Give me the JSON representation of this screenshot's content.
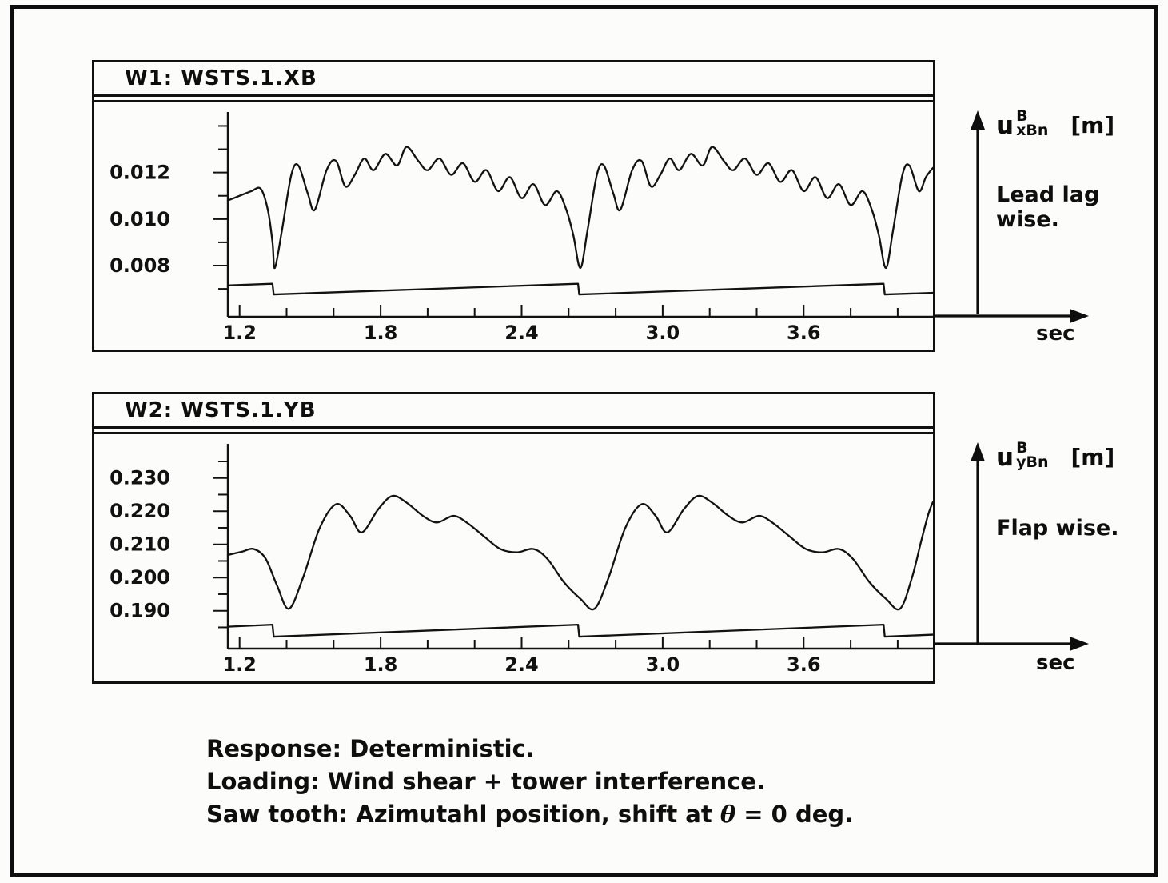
{
  "colors": {
    "ink": "#111111",
    "background": "#fcfcfa"
  },
  "panels": [
    {
      "title": "W1: WSTS.1.XB",
      "axis_label": {
        "base": "u",
        "sup": "B",
        "sub": "xBn",
        "unit": "[m]"
      },
      "direction_caption": "Lead lag wise.",
      "x_unit": "sec"
    },
    {
      "title": "W2: WSTS.1.YB",
      "axis_label": {
        "base": "u",
        "sup": "B",
        "sub": "yBn",
        "unit": "[m]"
      },
      "direction_caption": "Flap wise.",
      "x_unit": "sec"
    }
  ],
  "notes": {
    "line1": "Response: Deterministic.",
    "line2": "Loading: Wind shear + tower interference.",
    "line3_pre": "Saw tooth: Azimutahl position, shift at ",
    "line3_sym": "θ",
    "line3_post": " = 0 deg."
  },
  "chart_data": [
    {
      "type": "line",
      "title": "W1: WSTS.1.XB",
      "xlabel": "sec",
      "ylabel": "u_xBn^B [m] (Lead lag wise)",
      "grid": false,
      "legend": false,
      "xlim": [
        1.15,
        4.15
      ],
      "ylim": [
        0.0058,
        0.0146
      ],
      "x_ticks": [
        {
          "v": 1.2,
          "label": "1.2"
        },
        {
          "v": 1.4
        },
        {
          "v": 1.6
        },
        {
          "v": 1.8,
          "label": "1.8"
        },
        {
          "v": 2.0
        },
        {
          "v": 2.2
        },
        {
          "v": 2.4,
          "label": "2.4"
        },
        {
          "v": 2.6
        },
        {
          "v": 2.8
        },
        {
          "v": 3.0,
          "label": "3.0"
        },
        {
          "v": 3.2
        },
        {
          "v": 3.4
        },
        {
          "v": 3.6,
          "label": "3.6"
        },
        {
          "v": 3.8
        },
        {
          "v": 4.0
        }
      ],
      "y_ticks": [
        {
          "v": 0.007
        },
        {
          "v": 0.008,
          "label": "0.008"
        },
        {
          "v": 0.009
        },
        {
          "v": 0.01,
          "label": "0.010"
        },
        {
          "v": 0.011
        },
        {
          "v": 0.012,
          "label": "0.012"
        },
        {
          "v": 0.013
        },
        {
          "v": 0.014
        }
      ],
      "series": [
        {
          "name": "lead-lag-response",
          "smooth": true,
          "points": [
            [
              1.15,
              0.0108
            ],
            [
              1.2,
              0.011
            ],
            [
              1.25,
              0.0112
            ],
            [
              1.29,
              0.0113
            ],
            [
              1.32,
              0.0104
            ],
            [
              1.34,
              0.009
            ],
            [
              1.35,
              0.0079
            ],
            [
              1.38,
              0.0095
            ],
            [
              1.42,
              0.0119
            ],
            [
              1.45,
              0.0123
            ],
            [
              1.49,
              0.0111
            ],
            [
              1.52,
              0.0104
            ],
            [
              1.57,
              0.0121
            ],
            [
              1.61,
              0.0125
            ],
            [
              1.65,
              0.0114
            ],
            [
              1.69,
              0.0119
            ],
            [
              1.73,
              0.0126
            ],
            [
              1.77,
              0.0121
            ],
            [
              1.82,
              0.0128
            ],
            [
              1.87,
              0.0123
            ],
            [
              1.91,
              0.0131
            ],
            [
              1.96,
              0.0125
            ],
            [
              2.0,
              0.0121
            ],
            [
              2.05,
              0.0126
            ],
            [
              2.1,
              0.0119
            ],
            [
              2.15,
              0.0124
            ],
            [
              2.2,
              0.0116
            ],
            [
              2.25,
              0.0121
            ],
            [
              2.3,
              0.0112
            ],
            [
              2.35,
              0.0118
            ],
            [
              2.4,
              0.0109
            ],
            [
              2.45,
              0.0115
            ],
            [
              2.5,
              0.0106
            ],
            [
              2.55,
              0.0112
            ],
            [
              2.59,
              0.0104
            ],
            [
              2.62,
              0.0093
            ],
            [
              2.65,
              0.0079
            ],
            [
              2.68,
              0.0095
            ],
            [
              2.72,
              0.0119
            ],
            [
              2.75,
              0.0123
            ],
            [
              2.79,
              0.0111
            ],
            [
              2.82,
              0.0104
            ],
            [
              2.87,
              0.0121
            ],
            [
              2.91,
              0.0125
            ],
            [
              2.95,
              0.0114
            ],
            [
              2.99,
              0.0119
            ],
            [
              3.03,
              0.0126
            ],
            [
              3.07,
              0.0121
            ],
            [
              3.12,
              0.0128
            ],
            [
              3.17,
              0.0123
            ],
            [
              3.21,
              0.0131
            ],
            [
              3.26,
              0.0125
            ],
            [
              3.3,
              0.0121
            ],
            [
              3.35,
              0.0126
            ],
            [
              3.4,
              0.0119
            ],
            [
              3.45,
              0.0124
            ],
            [
              3.5,
              0.0116
            ],
            [
              3.55,
              0.0121
            ],
            [
              3.6,
              0.0112
            ],
            [
              3.65,
              0.0118
            ],
            [
              3.7,
              0.0109
            ],
            [
              3.75,
              0.0115
            ],
            [
              3.8,
              0.0106
            ],
            [
              3.85,
              0.0112
            ],
            [
              3.89,
              0.0104
            ],
            [
              3.92,
              0.0093
            ],
            [
              3.95,
              0.0079
            ],
            [
              3.98,
              0.0095
            ],
            [
              4.02,
              0.0119
            ],
            [
              4.05,
              0.0123
            ],
            [
              4.09,
              0.0112
            ],
            [
              4.12,
              0.0118
            ],
            [
              4.15,
              0.0122
            ]
          ]
        },
        {
          "name": "azimuth-sawtooth",
          "smooth": false,
          "points": [
            [
              1.15,
              0.00715
            ],
            [
              1.34,
              0.00722
            ],
            [
              1.345,
              0.00676
            ],
            [
              2.64,
              0.00722
            ],
            [
              2.645,
              0.00676
            ],
            [
              3.94,
              0.00722
            ],
            [
              3.945,
              0.00676
            ],
            [
              4.15,
              0.00683
            ]
          ]
        }
      ]
    },
    {
      "type": "line",
      "title": "W2: WSTS.1.YB",
      "xlabel": "sec",
      "ylabel": "u_yBn^B [m] (Flap wise)",
      "grid": false,
      "legend": false,
      "xlim": [
        1.15,
        4.15
      ],
      "ylim": [
        0.1786,
        0.2403
      ],
      "x_ticks": [
        {
          "v": 1.2,
          "label": "1.2"
        },
        {
          "v": 1.4
        },
        {
          "v": 1.6
        },
        {
          "v": 1.8,
          "label": "1.8"
        },
        {
          "v": 2.0
        },
        {
          "v": 2.2
        },
        {
          "v": 2.4,
          "label": "2.4"
        },
        {
          "v": 2.6
        },
        {
          "v": 2.8
        },
        {
          "v": 3.0,
          "label": "3.0"
        },
        {
          "v": 3.2
        },
        {
          "v": 3.4
        },
        {
          "v": 3.6,
          "label": "3.6"
        },
        {
          "v": 3.8
        },
        {
          "v": 4.0
        }
      ],
      "y_ticks": [
        {
          "v": 0.185
        },
        {
          "v": 0.19,
          "label": "0.190"
        },
        {
          "v": 0.195
        },
        {
          "v": 0.2,
          "label": "0.200"
        },
        {
          "v": 0.205
        },
        {
          "v": 0.21,
          "label": "0.210"
        },
        {
          "v": 0.215
        },
        {
          "v": 0.22,
          "label": "0.220"
        },
        {
          "v": 0.225
        },
        {
          "v": 0.23,
          "label": "0.230"
        },
        {
          "v": 0.235
        }
      ],
      "series": [
        {
          "name": "flap-response",
          "smooth": true,
          "points": [
            [
              1.15,
              0.2068
            ],
            [
              1.21,
              0.2078
            ],
            [
              1.26,
              0.2086
            ],
            [
              1.31,
              0.2058
            ],
            [
              1.36,
              0.1975
            ],
            [
              1.41,
              0.1906
            ],
            [
              1.47,
              0.2
            ],
            [
              1.54,
              0.2148
            ],
            [
              1.61,
              0.2221
            ],
            [
              1.67,
              0.2186
            ],
            [
              1.72,
              0.2136
            ],
            [
              1.79,
              0.2206
            ],
            [
              1.85,
              0.2246
            ],
            [
              1.91,
              0.2226
            ],
            [
              1.98,
              0.2186
            ],
            [
              2.04,
              0.2166
            ],
            [
              2.11,
              0.2186
            ],
            [
              2.17,
              0.2164
            ],
            [
              2.24,
              0.2124
            ],
            [
              2.31,
              0.2086
            ],
            [
              2.38,
              0.2076
            ],
            [
              2.45,
              0.2086
            ],
            [
              2.51,
              0.2056
            ],
            [
              2.58,
              0.1986
            ],
            [
              2.65,
              0.1936
            ],
            [
              2.71,
              0.1906
            ],
            [
              2.77,
              0.2
            ],
            [
              2.84,
              0.2148
            ],
            [
              2.91,
              0.2221
            ],
            [
              2.97,
              0.2186
            ],
            [
              3.02,
              0.2136
            ],
            [
              3.09,
              0.2206
            ],
            [
              3.15,
              0.2246
            ],
            [
              3.21,
              0.2226
            ],
            [
              3.28,
              0.2186
            ],
            [
              3.34,
              0.2166
            ],
            [
              3.41,
              0.2186
            ],
            [
              3.47,
              0.2164
            ],
            [
              3.54,
              0.2124
            ],
            [
              3.61,
              0.2086
            ],
            [
              3.68,
              0.2076
            ],
            [
              3.75,
              0.2086
            ],
            [
              3.81,
              0.2056
            ],
            [
              3.88,
              0.1986
            ],
            [
              3.95,
              0.1936
            ],
            [
              4.01,
              0.1906
            ],
            [
              4.06,
              0.1998
            ],
            [
              4.1,
              0.211
            ],
            [
              4.13,
              0.219
            ],
            [
              4.15,
              0.2228
            ]
          ]
        },
        {
          "name": "azimuth-sawtooth",
          "smooth": false,
          "points": [
            [
              1.15,
              0.1852
            ],
            [
              1.34,
              0.1858
            ],
            [
              1.345,
              0.1822
            ],
            [
              2.64,
              0.1858
            ],
            [
              2.645,
              0.1822
            ],
            [
              3.94,
              0.1858
            ],
            [
              3.945,
              0.1822
            ],
            [
              4.15,
              0.1828
            ]
          ]
        }
      ]
    }
  ]
}
